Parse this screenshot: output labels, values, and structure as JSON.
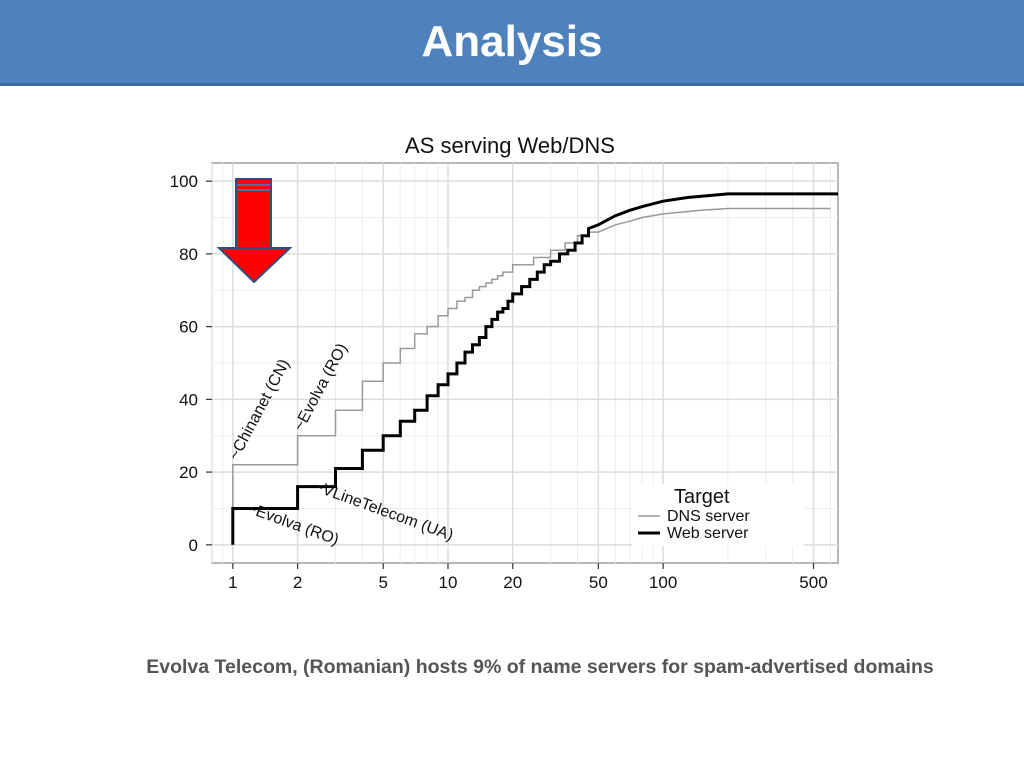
{
  "slide": {
    "title": "Analysis",
    "caption": "Evolva Telecom, (Romanian) hosts 9% of name servers for spam-advertised domains",
    "colors": {
      "header": "#4f81bd",
      "arrow": "#ff0000",
      "arrow_outline": "#2e4f80"
    },
    "highlight_icon": "down-arrow-icon"
  },
  "chart_data": {
    "type": "line",
    "title": "AS serving Web/DNS",
    "x_scale": "log",
    "xlim": [
      0.8,
      650
    ],
    "ylim": [
      -5,
      105
    ],
    "x_ticks": [
      1,
      2,
      5,
      10,
      20,
      50,
      100,
      500
    ],
    "y_ticks": [
      0,
      20,
      40,
      60,
      80,
      100
    ],
    "grid": true,
    "legend": {
      "title": "Target",
      "position": "bottom-right"
    },
    "series": [
      {
        "name": "DNS server",
        "color": "#999999",
        "points": [
          [
            1,
            0
          ],
          [
            1,
            22
          ],
          [
            2,
            22
          ],
          [
            2,
            30
          ],
          [
            3,
            30
          ],
          [
            3,
            37
          ],
          [
            4,
            37
          ],
          [
            4,
            45
          ],
          [
            5,
            45
          ],
          [
            5,
            50
          ],
          [
            6,
            50
          ],
          [
            6,
            54
          ],
          [
            7,
            54
          ],
          [
            7,
            58
          ],
          [
            8,
            58
          ],
          [
            8,
            60
          ],
          [
            9,
            60
          ],
          [
            9,
            63
          ],
          [
            10,
            63
          ],
          [
            10,
            65
          ],
          [
            11,
            65
          ],
          [
            11,
            67
          ],
          [
            12,
            67
          ],
          [
            12,
            68
          ],
          [
            13,
            68
          ],
          [
            13,
            70
          ],
          [
            14,
            70
          ],
          [
            14,
            71
          ],
          [
            15,
            71
          ],
          [
            15,
            72
          ],
          [
            16,
            72
          ],
          [
            16,
            73
          ],
          [
            17,
            73
          ],
          [
            17,
            74
          ],
          [
            18,
            74
          ],
          [
            18,
            75
          ],
          [
            20,
            75
          ],
          [
            20,
            77
          ],
          [
            25,
            77
          ],
          [
            25,
            79
          ],
          [
            30,
            79
          ],
          [
            30,
            81
          ],
          [
            35,
            81
          ],
          [
            35,
            83
          ],
          [
            40,
            83
          ],
          [
            40,
            85
          ],
          [
            45,
            85
          ],
          [
            45,
            86
          ],
          [
            50,
            86
          ],
          [
            60,
            88
          ],
          [
            70,
            89
          ],
          [
            80,
            90
          ],
          [
            100,
            91
          ],
          [
            150,
            92
          ],
          [
            200,
            92.5
          ],
          [
            600,
            92.5
          ]
        ]
      },
      {
        "name": "Web server",
        "color": "#000000",
        "points": [
          [
            1,
            0
          ],
          [
            1,
            10
          ],
          [
            2,
            10
          ],
          [
            2,
            16
          ],
          [
            3,
            16
          ],
          [
            3,
            21
          ],
          [
            4,
            21
          ],
          [
            4,
            26
          ],
          [
            5,
            26
          ],
          [
            5,
            30
          ],
          [
            6,
            30
          ],
          [
            6,
            34
          ],
          [
            7,
            34
          ],
          [
            7,
            37
          ],
          [
            8,
            37
          ],
          [
            8,
            41
          ],
          [
            9,
            41
          ],
          [
            9,
            44
          ],
          [
            10,
            44
          ],
          [
            10,
            47
          ],
          [
            11,
            47
          ],
          [
            11,
            50
          ],
          [
            12,
            50
          ],
          [
            12,
            53
          ],
          [
            13,
            53
          ],
          [
            13,
            55
          ],
          [
            14,
            55
          ],
          [
            14,
            57
          ],
          [
            15,
            57
          ],
          [
            15,
            60
          ],
          [
            16,
            60
          ],
          [
            16,
            62
          ],
          [
            17,
            62
          ],
          [
            17,
            64
          ],
          [
            18,
            64
          ],
          [
            18,
            65
          ],
          [
            19,
            65
          ],
          [
            19,
            67
          ],
          [
            20,
            67
          ],
          [
            20,
            69
          ],
          [
            22,
            69
          ],
          [
            22,
            71
          ],
          [
            24,
            71
          ],
          [
            24,
            73
          ],
          [
            26,
            73
          ],
          [
            26,
            75
          ],
          [
            28,
            75
          ],
          [
            28,
            77
          ],
          [
            30,
            77
          ],
          [
            30,
            78
          ],
          [
            33,
            78
          ],
          [
            33,
            80
          ],
          [
            36,
            80
          ],
          [
            36,
            81
          ],
          [
            39,
            81
          ],
          [
            39,
            83
          ],
          [
            42,
            83
          ],
          [
            42,
            85
          ],
          [
            45,
            85
          ],
          [
            45,
            87
          ],
          [
            50,
            88
          ],
          [
            60,
            90.5
          ],
          [
            70,
            92
          ],
          [
            80,
            93
          ],
          [
            100,
            94.5
          ],
          [
            130,
            95.5
          ],
          [
            200,
            96.5
          ],
          [
            650,
            96.5
          ]
        ]
      }
    ],
    "annotations": [
      {
        "text": "~Chinanet (CN)",
        "x": 1.05,
        "y": 23,
        "angle": -62
      },
      {
        "text": "~Evolva (RO)",
        "x": 2.1,
        "y": 31,
        "angle": -62
      },
      {
        "text": "~VLineTelecom (UA)",
        "x": 2.35,
        "y": 15,
        "angle": 20
      },
      {
        "text": "~Evolva (RO)",
        "x": 1.15,
        "y": 9,
        "angle": 20
      }
    ]
  }
}
